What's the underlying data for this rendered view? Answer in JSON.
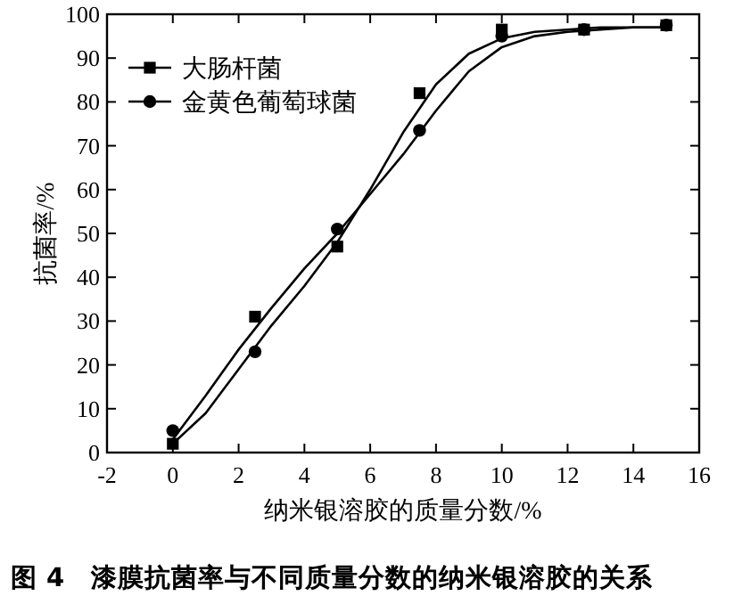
{
  "chart_data": {
    "type": "scatter",
    "title": "图 4　漆膜抗菌率与不同质量分数的纳米银溶胶的关系",
    "xlabel": "纳米银溶胶的质量分数/%",
    "ylabel": "抗菌率/%",
    "xlim": [
      -2,
      16
    ],
    "xticks": [
      -2,
      0,
      2,
      4,
      6,
      8,
      10,
      12,
      14,
      16
    ],
    "ylim": [
      0,
      100
    ],
    "yticks": [
      0,
      10,
      20,
      30,
      40,
      50,
      60,
      70,
      80,
      90,
      100
    ],
    "grid": false,
    "legend": "top left",
    "series": [
      {
        "name": "大肠杆菌",
        "type": "scatter",
        "marker": "square",
        "color": "#000000",
        "x": [
          0,
          2.5,
          5,
          7.5,
          10,
          12.5,
          15
        ],
        "values": [
          2,
          31,
          47,
          82,
          96.5,
          96.5,
          97.5
        ]
      },
      {
        "name": "金黄色葡萄球菌",
        "type": "scatter",
        "marker": "circle",
        "color": "#000000",
        "x": [
          0,
          2.5,
          5,
          7.5,
          10,
          12.5,
          15
        ],
        "values": [
          5,
          23,
          51,
          73.5,
          95,
          96.5,
          97.5
        ]
      },
      {
        "type": "line",
        "marker": "none",
        "color": "#000000",
        "x": [
          0,
          1,
          2,
          3,
          4,
          5,
          6,
          7,
          8,
          9,
          10,
          11,
          12,
          13,
          14,
          15
        ],
        "values": [
          2,
          9,
          19,
          29,
          38,
          48,
          60,
          73,
          84,
          91,
          94.5,
          96,
          96.5,
          97,
          97,
          97
        ]
      },
      {
        "type": "line",
        "marker": "none",
        "color": "#000000",
        "x": [
          0,
          1,
          2,
          3,
          4,
          5,
          6,
          7,
          8,
          9,
          10,
          11,
          12,
          13,
          14,
          15
        ],
        "values": [
          3,
          13,
          23.5,
          33,
          42,
          50,
          59,
          68,
          78,
          87,
          92.5,
          95,
          96,
          96.5,
          97,
          97
        ]
      }
    ]
  }
}
